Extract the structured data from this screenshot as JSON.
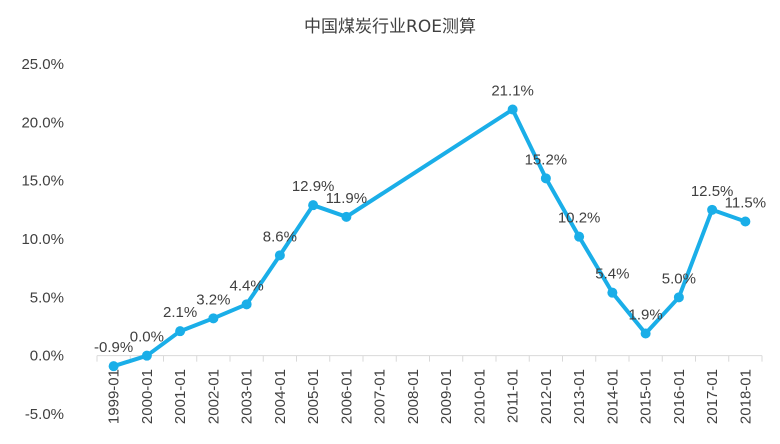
{
  "chart_data": {
    "type": "line",
    "title": "中国煤炭行业ROE测算",
    "xlabel": "",
    "ylabel": "",
    "x": [
      "1999-01",
      "2000-01",
      "2001-01",
      "2002-01",
      "2003-01",
      "2004-01",
      "2005-01",
      "2006-01",
      "2007-01",
      "2008-01",
      "2009-01",
      "2010-01",
      "2011-01",
      "2012-01",
      "2013-01",
      "2014-01",
      "2015-01",
      "2016-01",
      "2017-01",
      "2018-01"
    ],
    "series": [
      {
        "points": [
          {
            "x": "1999-01",
            "y": -0.9,
            "label": "-0.9%"
          },
          {
            "x": "2000-01",
            "y": 0.0,
            "label": "0.0%"
          },
          {
            "x": "2001-01",
            "y": 2.1,
            "label": "2.1%"
          },
          {
            "x": "2002-01",
            "y": 3.2,
            "label": "3.2%"
          },
          {
            "x": "2003-01",
            "y": 4.4,
            "label": "4.4%"
          },
          {
            "x": "2004-01",
            "y": 8.6,
            "label": "8.6%"
          },
          {
            "x": "2005-01",
            "y": 12.9,
            "label": "12.9%"
          },
          {
            "x": "2006-01",
            "y": 11.9,
            "label": "11.9%"
          },
          {
            "x": "2011-01",
            "y": 21.1,
            "label": "21.1%"
          },
          {
            "x": "2012-01",
            "y": 15.2,
            "label": "15.2%"
          },
          {
            "x": "2013-01",
            "y": 10.2,
            "label": "10.2%"
          },
          {
            "x": "2014-01",
            "y": 5.4,
            "label": "5.4%"
          },
          {
            "x": "2015-01",
            "y": 1.9,
            "label": "1.9%"
          },
          {
            "x": "2016-01",
            "y": 5.0,
            "label": "5.0%"
          },
          {
            "x": "2017-01",
            "y": 12.5,
            "label": "12.5%"
          },
          {
            "x": "2018-01",
            "y": 11.5,
            "label": "11.5%"
          }
        ]
      }
    ],
    "yticks": [
      "-5.0%",
      "0.0%",
      "5.0%",
      "10.0%",
      "15.0%",
      "20.0%",
      "25.0%"
    ],
    "ytick_values": [
      -5,
      0,
      5,
      10,
      15,
      20,
      25
    ],
    "ylim": [
      -5,
      25
    ],
    "grid": false,
    "legend": "none",
    "line_color": "#1aaee8"
  }
}
